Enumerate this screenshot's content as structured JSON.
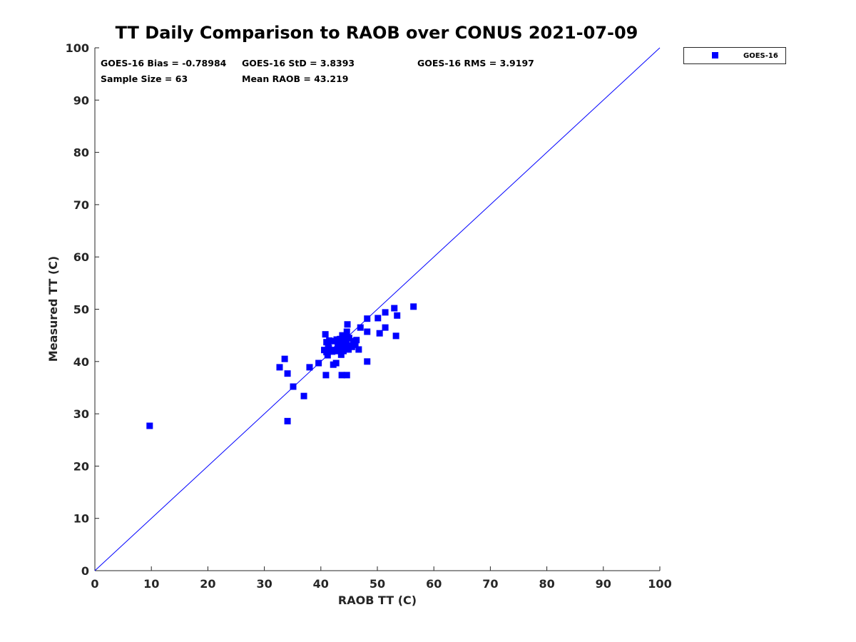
{
  "chart_data": {
    "type": "scatter",
    "title": "TT Daily Comparison to RAOB over CONUS 2021-07-09",
    "xlabel": "RAOB TT (C)",
    "ylabel": "Measured TT (C)",
    "xlim": [
      0,
      100
    ],
    "ylim": [
      0,
      100
    ],
    "xticks": [
      0,
      10,
      20,
      30,
      40,
      50,
      60,
      70,
      80,
      90,
      100
    ],
    "yticks": [
      0,
      10,
      20,
      30,
      40,
      50,
      60,
      70,
      80,
      90,
      100
    ],
    "grid": false,
    "legend": {
      "placement": "outside-top-right",
      "entries": [
        "GOES-16"
      ]
    },
    "reference_line": {
      "name": "1:1",
      "color": "#0000ff"
    },
    "annotations": [
      "GOES-16 Bias = -0.78984",
      "GOES-16 StD = 3.8393",
      "GOES-16 RMS = 3.9197",
      "Sample Size = 63",
      "Mean RAOB = 43.219"
    ],
    "series": [
      {
        "name": "GOES-16",
        "color": "#0000ff",
        "marker": "square",
        "points": [
          [
            9.7,
            27.7
          ],
          [
            32.7,
            38.9
          ],
          [
            33.6,
            40.5
          ],
          [
            34.1,
            37.7
          ],
          [
            34.1,
            28.6
          ],
          [
            35.1,
            35.2
          ],
          [
            37.0,
            33.4
          ],
          [
            38.0,
            38.9
          ],
          [
            39.6,
            39.7
          ],
          [
            40.9,
            37.4
          ],
          [
            40.8,
            45.2
          ],
          [
            40.6,
            42.2
          ],
          [
            41.0,
            43.7
          ],
          [
            41.2,
            41.2
          ],
          [
            41.4,
            42.6
          ],
          [
            42.0,
            43.9
          ],
          [
            42.2,
            39.4
          ],
          [
            42.7,
            39.7
          ],
          [
            42.0,
            42.2
          ],
          [
            42.9,
            42.3
          ],
          [
            43.4,
            44.3
          ],
          [
            43.6,
            41.3
          ],
          [
            43.7,
            37.4
          ],
          [
            44.6,
            37.4
          ],
          [
            43.8,
            43.2
          ],
          [
            44.0,
            44.7
          ],
          [
            44.2,
            42.6
          ],
          [
            44.6,
            45.7
          ],
          [
            44.7,
            47.1
          ],
          [
            44.9,
            42.3
          ],
          [
            45.3,
            43.0
          ],
          [
            45.7,
            43.9
          ],
          [
            46.1,
            43.2
          ],
          [
            46.3,
            44.1
          ],
          [
            46.7,
            42.3
          ],
          [
            47.0,
            46.5
          ],
          [
            48.2,
            48.2
          ],
          [
            48.2,
            45.7
          ],
          [
            48.2,
            40.0
          ],
          [
            50.1,
            48.3
          ],
          [
            50.4,
            45.4
          ],
          [
            51.4,
            49.4
          ],
          [
            51.4,
            46.5
          ],
          [
            53.0,
            50.2
          ],
          [
            53.3,
            44.9
          ],
          [
            53.5,
            48.8
          ],
          [
            56.4,
            50.5
          ],
          [
            41.5,
            44.0
          ],
          [
            42.5,
            42.0
          ],
          [
            43.0,
            43.5
          ],
          [
            43.5,
            43.0
          ],
          [
            44.0,
            42.0
          ],
          [
            44.5,
            44.0
          ],
          [
            45.0,
            44.5
          ],
          [
            41.0,
            41.8
          ],
          [
            42.0,
            41.9
          ],
          [
            43.2,
            42.8
          ],
          [
            44.3,
            43.5
          ],
          [
            45.5,
            42.8
          ],
          [
            46.0,
            43.8
          ],
          [
            41.3,
            43.0
          ],
          [
            42.8,
            44.2
          ],
          [
            43.8,
            45.0
          ]
        ]
      }
    ]
  }
}
